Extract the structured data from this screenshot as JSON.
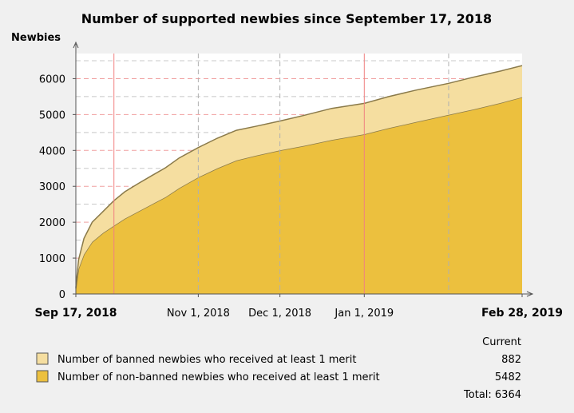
{
  "chart_data": {
    "type": "area",
    "title": "Number of supported newbies since September 17, 2018",
    "ylabel": "Newbies",
    "xlabel": "",
    "ylim": [
      0,
      6700
    ],
    "y_ticks": [
      0,
      1000,
      2000,
      3000,
      4000,
      5000,
      6000
    ],
    "x_range": [
      "2018-09-17",
      "2019-02-28"
    ],
    "x_ticks": [
      {
        "date": "2018-09-17",
        "label": "Sep 17, 2018",
        "bold": true
      },
      {
        "date": "2018-11-01",
        "label": "Nov 1, 2018",
        "bold": false
      },
      {
        "date": "2018-12-01",
        "label": "Dec 1, 2018",
        "bold": false
      },
      {
        "date": "2019-01-01",
        "label": "Jan 1, 2019",
        "bold": false
      },
      {
        "date": "2019-02-28",
        "label": "Feb 28, 2019",
        "bold": true
      }
    ],
    "grid": true,
    "stacked": true,
    "x": [
      "2018-09-17",
      "2018-09-18",
      "2018-09-20",
      "2018-09-23",
      "2018-09-27",
      "2018-10-01",
      "2018-10-05",
      "2018-10-10",
      "2018-10-15",
      "2018-10-20",
      "2018-10-25",
      "2018-11-01",
      "2018-11-08",
      "2018-11-15",
      "2018-11-22",
      "2018-12-01",
      "2018-12-10",
      "2018-12-20",
      "2019-01-01",
      "2019-01-10",
      "2019-01-20",
      "2019-02-01",
      "2019-02-10",
      "2019-02-20",
      "2019-02-28"
    ],
    "series": [
      {
        "name": "Number of non-banned newbies who received at least 1 merit",
        "color": "#ecc03e",
        "values": [
          150,
          700,
          1100,
          1450,
          1700,
          1900,
          2100,
          2300,
          2500,
          2700,
          2950,
          3250,
          3500,
          3720,
          3850,
          4000,
          4130,
          4290,
          4450,
          4620,
          4790,
          4990,
          5140,
          5320,
          5482
        ]
      },
      {
        "name": "Number of banned newbies who received at least 1 merit",
        "color": "#f5dea0",
        "values": [
          30,
          250,
          450,
          550,
          600,
          700,
          750,
          780,
          800,
          820,
          840,
          830,
          840,
          840,
          820,
          820,
          850,
          880,
          860,
          880,
          890,
          880,
          900,
          890,
          882
        ]
      }
    ],
    "legend": {
      "position": "bottom",
      "current_header": "Current",
      "current_values": [
        "882",
        "5482"
      ],
      "total_label": "Total: 6364"
    }
  }
}
